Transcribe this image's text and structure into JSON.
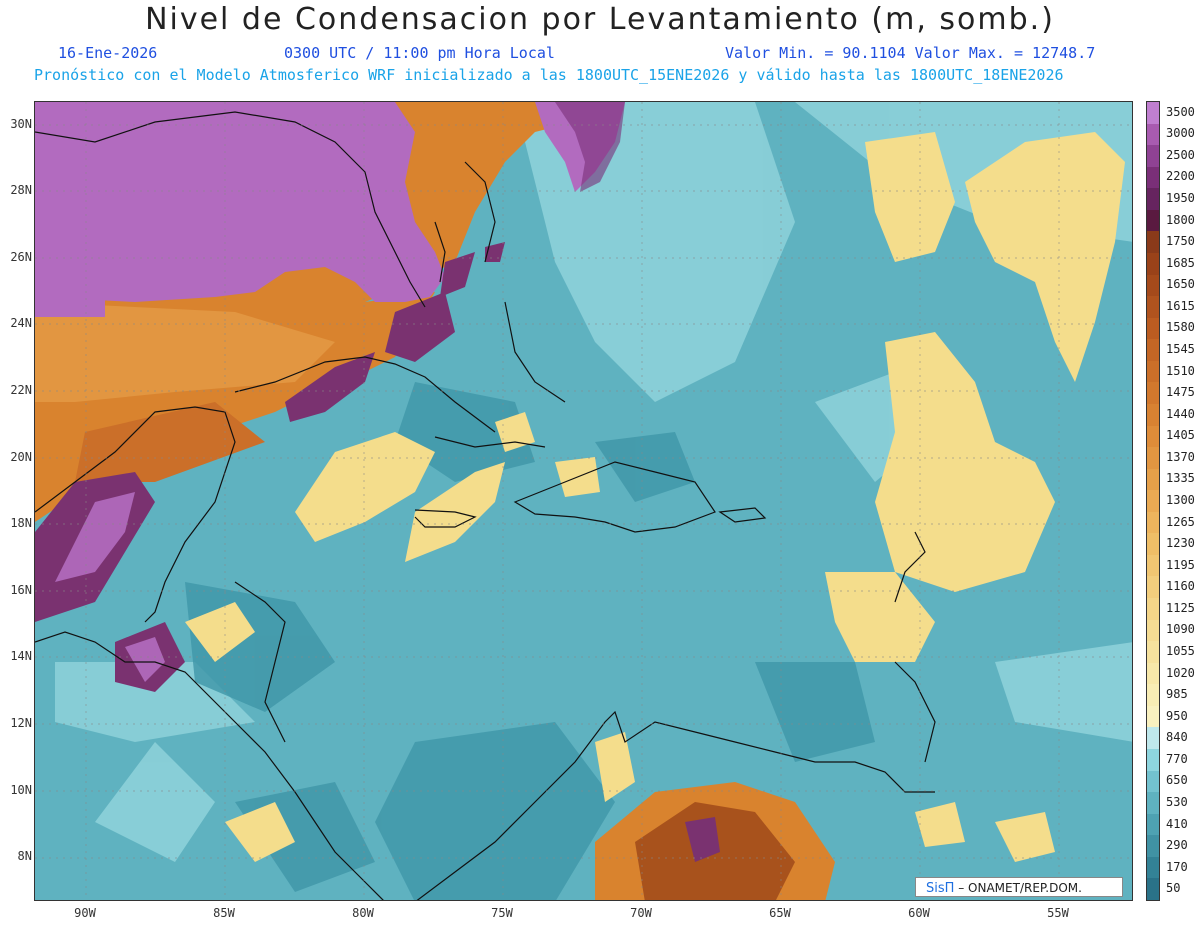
{
  "header": {
    "title": "Nivel de Condensacion por Levantamiento (m, somb.)",
    "date": "16-Ene-2026",
    "time": "0300 UTC / 11:00 pm Hora Local",
    "min_max": "Valor Min. = 90.1104  Valor Max. = 12748.7",
    "model_info": "Pronóstico con el Modelo Atmosferico WRF inicializado a las 1800UTC_15ENE2026 y válido hasta las  1800UTC_18ENE2026"
  },
  "map": {
    "lat_labels": [
      "30N",
      "28N",
      "26N",
      "24N",
      "22N",
      "20N",
      "18N",
      "16N",
      "14N",
      "12N",
      "10N",
      "8N"
    ],
    "lon_labels": [
      "90W",
      "85W",
      "80W",
      "75W",
      "70W",
      "65W",
      "60W",
      "55W"
    ],
    "colors": {
      "ocean": "#5fb2c0",
      "ocean_deep": "#3f96a8",
      "ocean_light": "#8fd2da",
      "yellow": "#f4dd8c",
      "orange": "#d9832e",
      "brown": "#a8521c",
      "purple": "#7a3270",
      "violet": "#b26bbf",
      "coast": "#111111"
    }
  },
  "colorbar": {
    "levels": [
      "3500",
      "3000",
      "2500",
      "2200",
      "1950",
      "1800",
      "1750",
      "1685",
      "1650",
      "1615",
      "1580",
      "1545",
      "1510",
      "1475",
      "1440",
      "1405",
      "1370",
      "1335",
      "1300",
      "1265",
      "1230",
      "1195",
      "1160",
      "1125",
      "1090",
      "1055",
      "1020",
      "985",
      "950",
      "840",
      "770",
      "650",
      "530",
      "410",
      "290",
      "170",
      "50"
    ],
    "colors": [
      "#c07fd0",
      "#a85bb0",
      "#8f4294",
      "#7a2f78",
      "#66245f",
      "#5a1a40",
      "#8a3a1a",
      "#9a4219",
      "#a54a1b",
      "#b0531e",
      "#bb5c21",
      "#c46625",
      "#cb6f29",
      "#d2782d",
      "#d88232",
      "#de8c39",
      "#e29641",
      "#e6a049",
      "#eaaa53",
      "#edb45d",
      "#efbe67",
      "#f1c672",
      "#f3ce7d",
      "#f4d588",
      "#f5dc93",
      "#f6e29e",
      "#f7e8aa",
      "#f8edb5",
      "#f9f1c0",
      "#bfe8ec",
      "#8ed5de",
      "#73c2cf",
      "#5fb2c0",
      "#4ea2b2",
      "#4092a4",
      "#338296",
      "#2a7288"
    ]
  },
  "credit": {
    "brand": "SisΠ",
    "org": " – ONAMET/REP.DOM."
  }
}
